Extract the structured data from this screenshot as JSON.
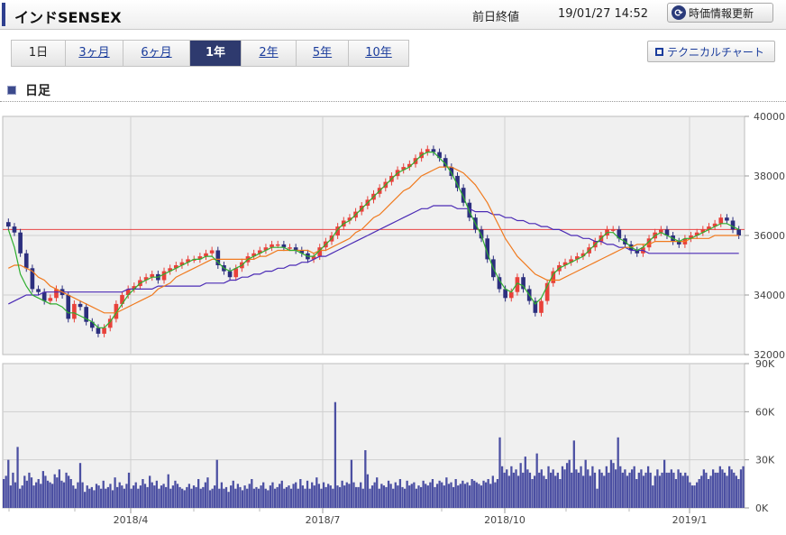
{
  "header": {
    "title": "インドSENSEX",
    "prev_close_label": "前日終値",
    "timestamp": "19/01/27 14:52",
    "refresh_label": "時価情報更新"
  },
  "tabs": [
    {
      "label": "1日",
      "active": false,
      "link": false
    },
    {
      "label": "3ヶ月",
      "active": false,
      "link": true
    },
    {
      "label": "6ヶ月",
      "active": false,
      "link": true
    },
    {
      "label": "1年",
      "active": true,
      "link": false
    },
    {
      "label": "2年",
      "active": false,
      "link": true
    },
    {
      "label": "5年",
      "active": false,
      "link": true
    },
    {
      "label": "10年",
      "active": false,
      "link": true
    }
  ],
  "technical_button_label": "テクニカルチャート",
  "section_title": "日足",
  "chart_data": [
    {
      "type": "candlestick",
      "title": "",
      "ylim": [
        32000,
        40000
      ],
      "y_ticks": [
        "40000",
        "38000",
        "36000",
        "34000",
        "32000"
      ],
      "grid": true,
      "reference_line": 36200,
      "colors": {
        "up": "#e8413a",
        "down": "#2c2f7e",
        "ma_short": "#2fae2f",
        "ma_mid": "#f07a1e",
        "ma_long": "#4b2bb5",
        "ref": "#e84444"
      },
      "x_ticks": [
        "2018/4",
        "2018/7",
        "2018/10",
        "2019/1"
      ],
      "series": [
        {
          "type": "ohlc",
          "x_end": "2019-01-25",
          "points": [
            36300,
            36100,
            35400,
            34900,
            34200,
            34100,
            33800,
            33900,
            34200,
            34000,
            33200,
            33700,
            33600,
            33100,
            32900,
            32700,
            32900,
            33200,
            33700,
            34000,
            34200,
            34300,
            34500,
            34600,
            34700,
            34500,
            34800,
            34900,
            35000,
            35100,
            35200,
            35200,
            35300,
            35400,
            35500,
            35000,
            34800,
            34600,
            34900,
            35100,
            35300,
            35400,
            35500,
            35600,
            35700,
            35700,
            35600,
            35600,
            35500,
            35400,
            35200,
            35300,
            35600,
            35800,
            36000,
            36300,
            36500,
            36600,
            36800,
            37000,
            37200,
            37400,
            37600,
            37800,
            38000,
            38200,
            38300,
            38400,
            38600,
            38800,
            38900,
            38800,
            38600,
            38300,
            38000,
            37600,
            37100,
            36600,
            36200,
            35900,
            35200,
            34600,
            34200,
            33900,
            34100,
            34600,
            34200,
            33800,
            33400,
            33800,
            34400,
            34800,
            35000,
            35100,
            35200,
            35300,
            35400,
            35600,
            35800,
            36000,
            36200,
            36200,
            35900,
            35700,
            35500,
            35400,
            35600,
            35900,
            36100,
            36200,
            36000,
            35800,
            35700,
            35900,
            36000,
            36100,
            36200,
            36300,
            36400,
            36600,
            36500,
            36200,
            36000
          ]
        },
        {
          "type": "line",
          "points": [
            36200,
            35600,
            34700,
            34300,
            34000,
            33900,
            33800,
            33700,
            33700,
            33600,
            33400,
            33400,
            33300,
            33200,
            33100,
            32900,
            32900,
            33100,
            33400,
            33700,
            34000,
            34200,
            34400,
            34500,
            34600,
            34600,
            34700,
            34800,
            34900,
            35000,
            35100,
            35200,
            35200,
            35300,
            35300,
            35100,
            34900,
            34800,
            34900,
            35000,
            35200,
            35300,
            35400,
            35500,
            35600,
            35600,
            35600,
            35500,
            35500,
            35400,
            35300,
            35300,
            35500,
            35700,
            35900,
            36200,
            36400,
            36500,
            36700,
            36900,
            37100,
            37300,
            37500,
            37700,
            37900,
            38100,
            38200,
            38300,
            38500,
            38700,
            38800,
            38800,
            38600,
            38400,
            38100,
            37700,
            37300,
            36800,
            36400,
            36000,
            35400,
            34900,
            34500,
            34200,
            34100,
            34400,
            34300,
            34000,
            33700,
            33900,
            34300,
            34700,
            34900,
            35000,
            35100,
            35200,
            35300,
            35500,
            35700,
            35900,
            36100,
            36100,
            35900,
            35800,
            35600,
            35500,
            35600,
            35800,
            36000,
            36100,
            36000,
            35900,
            35800,
            35900,
            35900,
            36000,
            36100,
            36200,
            36300,
            36400,
            36400,
            36300,
            36200
          ]
        },
        {
          "type": "line",
          "points": [
            34900,
            35000,
            35000,
            34900,
            34800,
            34600,
            34500,
            34300,
            34200,
            34100,
            34000,
            33900,
            33800,
            33700,
            33600,
            33500,
            33400,
            33400,
            33400,
            33500,
            33600,
            33700,
            33800,
            33900,
            34000,
            34200,
            34300,
            34400,
            34600,
            34700,
            34800,
            34900,
            35000,
            35100,
            35200,
            35200,
            35200,
            35200,
            35200,
            35200,
            35200,
            35200,
            35300,
            35300,
            35400,
            35500,
            35500,
            35500,
            35500,
            35500,
            35500,
            35400,
            35500,
            35500,
            35600,
            35700,
            35800,
            35900,
            36100,
            36200,
            36400,
            36600,
            36700,
            36900,
            37100,
            37300,
            37500,
            37600,
            37800,
            38000,
            38100,
            38200,
            38300,
            38300,
            38300,
            38200,
            38100,
            37900,
            37700,
            37400,
            37100,
            36700,
            36300,
            35900,
            35600,
            35300,
            35100,
            34900,
            34700,
            34600,
            34500,
            34500,
            34500,
            34600,
            34700,
            34800,
            34900,
            35000,
            35100,
            35200,
            35300,
            35400,
            35500,
            35600,
            35600,
            35700,
            35700,
            35700,
            35800,
            35800,
            35800,
            35800,
            35800,
            35800,
            35900,
            35900,
            35900,
            35900,
            36000,
            36000,
            36000,
            36000,
            36000
          ]
        },
        {
          "type": "line",
          "points": [
            33700,
            33800,
            33900,
            34000,
            34000,
            34000,
            34100,
            34100,
            34100,
            34100,
            34100,
            34100,
            34100,
            34100,
            34100,
            34100,
            34100,
            34100,
            34100,
            34100,
            34200,
            34200,
            34200,
            34200,
            34200,
            34300,
            34300,
            34300,
            34300,
            34300,
            34300,
            34300,
            34300,
            34400,
            34400,
            34400,
            34400,
            34500,
            34500,
            34600,
            34600,
            34700,
            34700,
            34800,
            34800,
            34900,
            34900,
            35000,
            35000,
            35100,
            35100,
            35200,
            35300,
            35300,
            35400,
            35500,
            35600,
            35700,
            35800,
            35900,
            36000,
            36100,
            36200,
            36300,
            36400,
            36500,
            36600,
            36700,
            36800,
            36900,
            36900,
            37000,
            37000,
            37000,
            37000,
            36900,
            36900,
            36900,
            36800,
            36800,
            36800,
            36700,
            36700,
            36600,
            36600,
            36500,
            36500,
            36400,
            36400,
            36300,
            36300,
            36200,
            36200,
            36100,
            36000,
            36000,
            35900,
            35900,
            35800,
            35800,
            35700,
            35700,
            35600,
            35600,
            35500,
            35500,
            35500,
            35400,
            35400,
            35400,
            35400,
            35400,
            35400,
            35400,
            35400,
            35400,
            35400,
            35400,
            35400,
            35400,
            35400,
            35400,
            35400
          ]
        }
      ]
    },
    {
      "type": "bar",
      "title": "",
      "ylim": [
        0,
        90000
      ],
      "y_ticks": [
        "90K",
        "60K",
        "30K",
        "0K"
      ],
      "grid": true,
      "colors": {
        "bar": "#4b4fa2"
      },
      "x_ticks": [
        "2018/4",
        "2018/7",
        "2018/10",
        "2019/1"
      ],
      "values": [
        18000,
        20000,
        30000,
        14000,
        22000,
        16000,
        38000,
        12000,
        14000,
        20000,
        17000,
        22000,
        19000,
        14000,
        16000,
        18000,
        15000,
        23000,
        20000,
        17000,
        16000,
        15000,
        21000,
        19000,
        24000,
        17000,
        16000,
        22000,
        20000,
        18000,
        14000,
        12000,
        16000,
        28000,
        16000,
        10000,
        14000,
        12000,
        13000,
        11000,
        15000,
        14000,
        12000,
        17000,
        12000,
        13000,
        15000,
        11000,
        19000,
        13000,
        16000,
        14000,
        12000,
        15000,
        22000,
        12000,
        14000,
        16000,
        12000,
        14000,
        18000,
        15000,
        13000,
        20000,
        16000,
        14000,
        17000,
        12000,
        14000,
        15000,
        13000,
        21000,
        12000,
        14000,
        17000,
        15000,
        13000,
        12000,
        11000,
        13000,
        15000,
        12000,
        14000,
        13000,
        18000,
        12000,
        13000,
        16000,
        19000,
        11000,
        12000,
        14000,
        30000,
        12000,
        16000,
        12000,
        13000,
        10000,
        14000,
        17000,
        12000,
        15000,
        13000,
        11000,
        14000,
        12000,
        15000,
        18000,
        12000,
        13000,
        12000,
        14000,
        16000,
        12000,
        11000,
        14000,
        16000,
        12000,
        13000,
        15000,
        17000,
        12000,
        13000,
        14000,
        12000,
        15000,
        16000,
        12000,
        18000,
        14000,
        12000,
        17000,
        12000,
        16000,
        14000,
        19000,
        15000,
        12000,
        16000,
        13000,
        15000,
        14000,
        12000,
        66000,
        14000,
        13000,
        17000,
        14000,
        16000,
        15000,
        30000,
        16000,
        13000,
        13000,
        16000,
        12000,
        36000,
        21000,
        12000,
        14000,
        16000,
        19000,
        12000,
        15000,
        14000,
        13000,
        17000,
        15000,
        12000,
        16000,
        14000,
        18000,
        13000,
        12000,
        17000,
        14000,
        15000,
        16000,
        12000,
        14000,
        13000,
        17000,
        15000,
        14000,
        16000,
        18000,
        13000,
        15000,
        17000,
        16000,
        14000,
        19000,
        15000,
        16000,
        13000,
        18000,
        14000,
        15000,
        17000,
        15000,
        16000,
        14000,
        18000,
        17000,
        16000,
        15000,
        14000,
        17000,
        16000,
        18000,
        15000,
        20000,
        16000,
        18000,
        44000,
        26000,
        22000,
        24000,
        20000,
        26000,
        22000,
        24000,
        20000,
        28000,
        22000,
        32000,
        24000,
        22000,
        18000,
        20000,
        34000,
        22000,
        24000,
        20000,
        18000,
        26000,
        22000,
        24000,
        20000,
        22000,
        18000,
        26000,
        24000,
        28000,
        30000,
        22000,
        42000,
        24000,
        22000,
        26000,
        20000,
        30000,
        24000,
        20000,
        26000,
        22000,
        12000,
        24000,
        22000,
        20000,
        26000,
        22000,
        30000,
        28000,
        24000,
        44000,
        26000,
        22000,
        24000,
        20000,
        22000,
        24000,
        26000,
        18000,
        22000,
        24000,
        20000,
        22000,
        26000,
        22000,
        14000,
        20000,
        24000,
        20000,
        22000,
        30000,
        22000,
        22000,
        24000,
        22000,
        18000,
        24000,
        22000,
        20000,
        22000,
        20000,
        16000,
        14000,
        14000,
        16000,
        18000,
        20000,
        24000,
        22000,
        18000,
        20000,
        24000,
        22000,
        22000,
        26000,
        24000,
        22000,
        20000,
        26000,
        24000,
        22000,
        20000,
        18000,
        24000,
        26000
      ]
    }
  ]
}
